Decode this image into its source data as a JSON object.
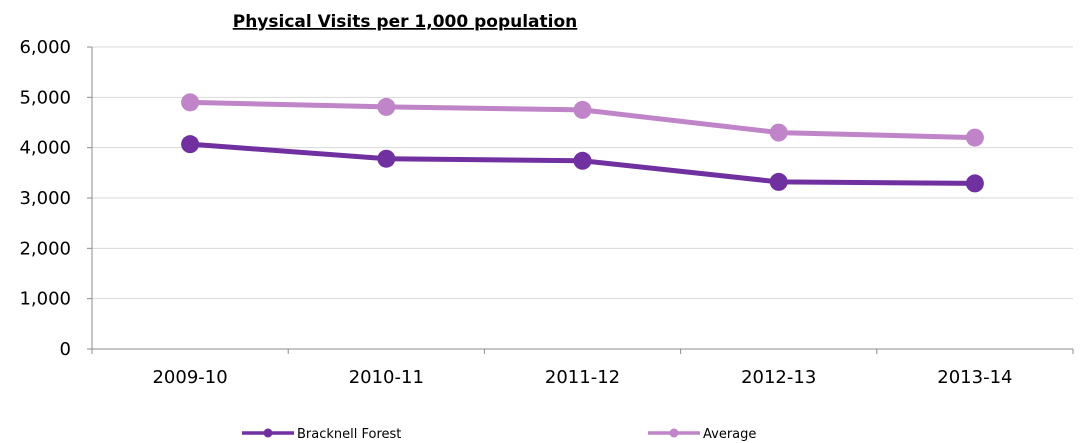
{
  "chart_data": {
    "type": "line",
    "title": "Physical Visits per 1,000 population",
    "categories": [
      "2009-10",
      "2010-11",
      "2011-12",
      "2012-13",
      "2013-14"
    ],
    "ylim": [
      0,
      6000
    ],
    "yticks": [
      0,
      1000,
      2000,
      3000,
      4000,
      5000,
      6000
    ],
    "ytick_labels": [
      "0",
      "1,000",
      "2,000",
      "3,000",
      "4,000",
      "5,000",
      "6,000"
    ],
    "grid": true,
    "legend_position": "bottom",
    "series": [
      {
        "name": "Bracknell Forest",
        "values": [
          4070,
          3780,
          3740,
          3320,
          3290
        ],
        "color": "#7030a0"
      },
      {
        "name": "Average",
        "values": [
          4900,
          4810,
          4750,
          4300,
          4200
        ],
        "color": "#c084c8"
      }
    ]
  }
}
